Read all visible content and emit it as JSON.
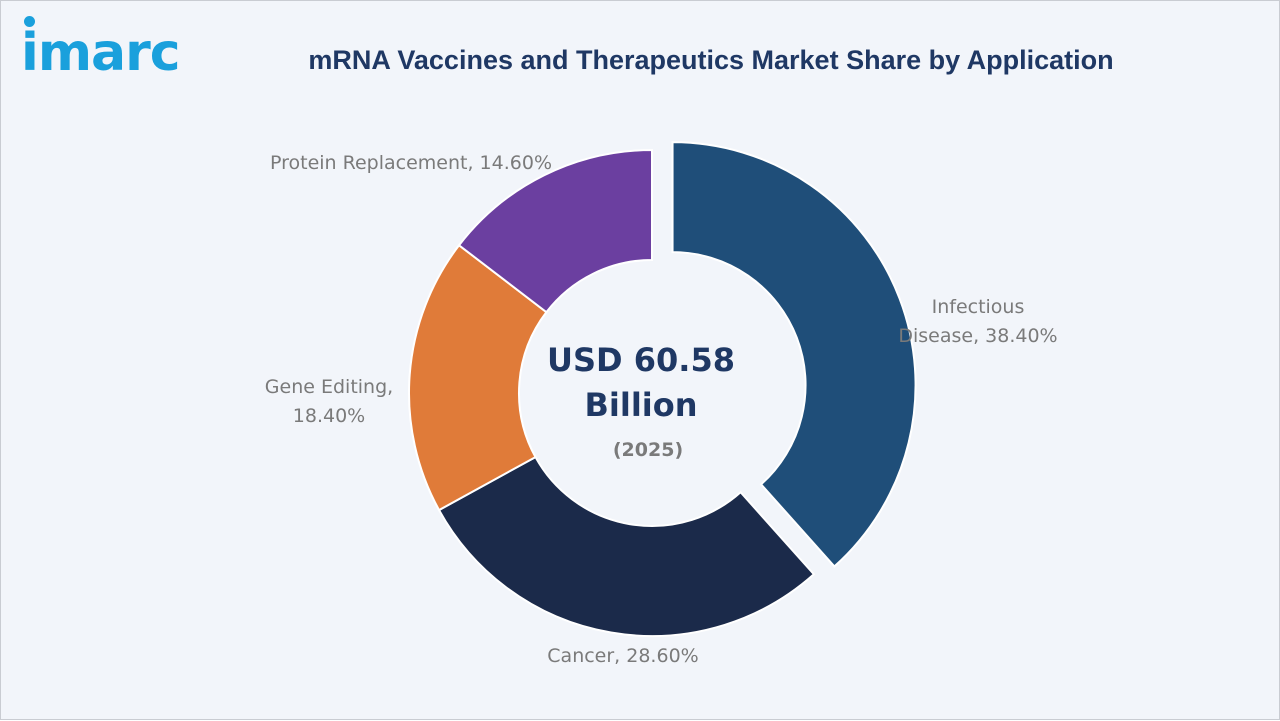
{
  "brand": {
    "logo_text": "imarc",
    "color": "#1aa0dc"
  },
  "chart_data": {
    "type": "pie",
    "title": "mRNA Vaccines and Therapeutics Market Share by Application",
    "center_value_line1": "USD 60.58",
    "center_value_line2": "Billion",
    "center_year": "(2025)",
    "unit": "%",
    "slices": [
      {
        "name": "Infectious Disease",
        "value": 38.4,
        "label_lines": [
          "Infectious",
          "Disease, 38.40%"
        ],
        "color": "#1f4e79",
        "exploded": true
      },
      {
        "name": "Cancer",
        "value": 28.6,
        "label_lines": [
          "Cancer, 28.60%"
        ],
        "color": "#1b2a4a",
        "exploded": false
      },
      {
        "name": "Gene Editing",
        "value": 18.4,
        "label_lines": [
          "Gene Editing,",
          "18.40%"
        ],
        "color": "#e07b39",
        "exploded": false
      },
      {
        "name": "Protein Replacement",
        "value": 14.6,
        "label_lines": [
          "Protein Replacement, 14.60%"
        ],
        "color": "#6b3fa0",
        "exploded": false
      }
    ]
  }
}
